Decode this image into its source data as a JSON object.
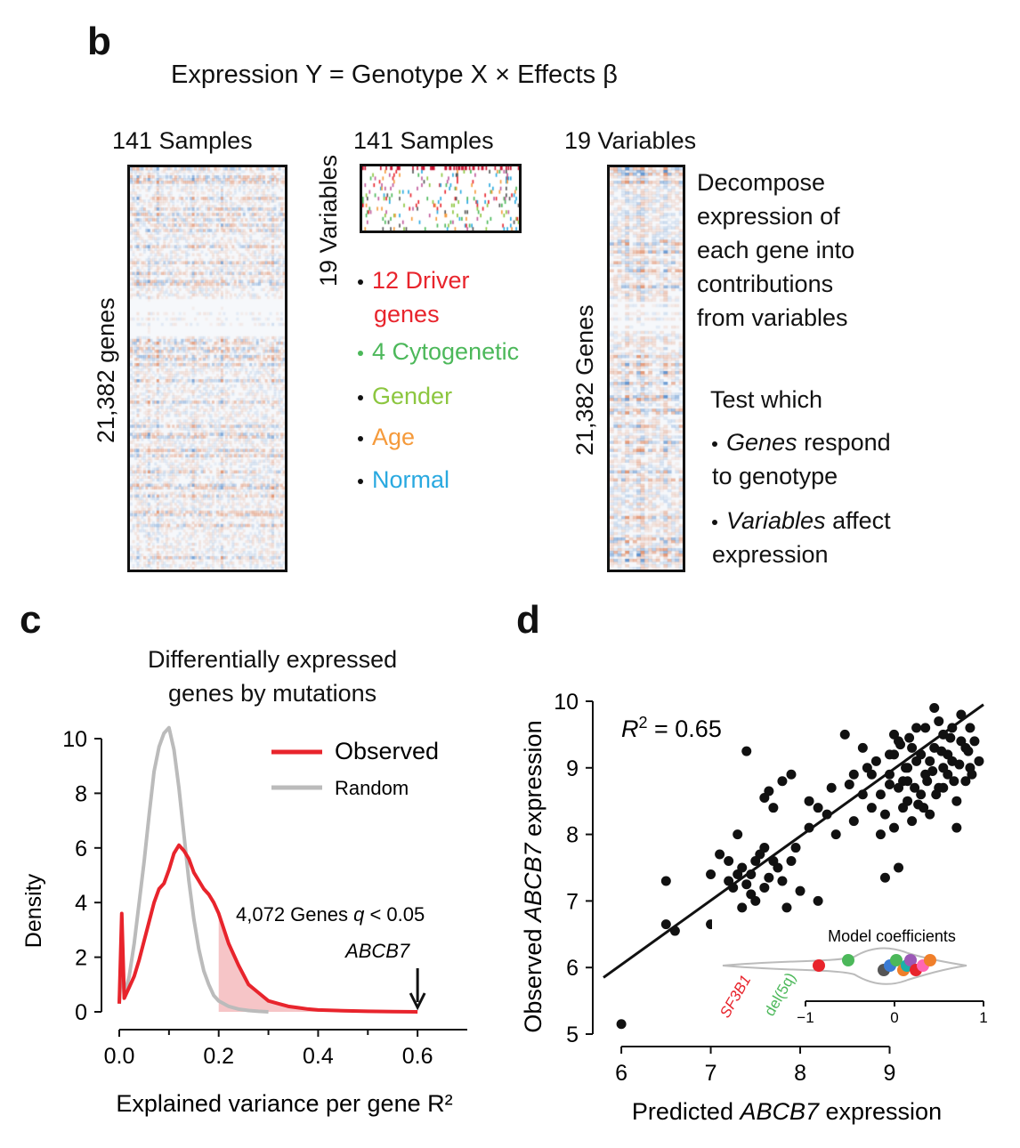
{
  "panel_b": {
    "label": "b",
    "equation": "Expression Y = Genotype X × Effects β",
    "expr_matrix": {
      "top_label": "141 Samples",
      "side_label": "21,382 genes"
    },
    "geno_matrix": {
      "top_label": "141 Samples",
      "side_label": "19 Variables"
    },
    "effects_matrix": {
      "top_label": "19 Variables",
      "side_label": "21,382 Genes"
    },
    "variables": [
      {
        "text": "12 Driver genes",
        "color": "#e8242c"
      },
      {
        "text": "4 Cytogenetic",
        "color": "#4cb85a"
      },
      {
        "text": "Gender",
        "color": "#8cc63f"
      },
      {
        "text": "Age",
        "color": "#f59a3b"
      },
      {
        "text": "Normal",
        "color": "#29a9e0"
      }
    ],
    "decompose_text": [
      "Decompose",
      "expression of",
      "each gene into",
      "contributions",
      "from variables"
    ],
    "test_title": "Test which",
    "test_items": [
      {
        "em": "Genes",
        "rest": " respond",
        "line2": "to genotype"
      },
      {
        "em": "Variables",
        "rest": " affect",
        "line2": "expression"
      }
    ]
  },
  "panel_c": {
    "label": "c",
    "title_lines": [
      "Differentially expressed",
      "genes by mutations"
    ],
    "annotation": "4,072 Genes",
    "annotation_q": "q",
    "annotation_tail": " < 0.05",
    "arrow_label": "ABCB7",
    "chart_data": {
      "type": "line",
      "xlabel": "Explained variance per gene R²",
      "ylabel": "Density",
      "xlim": [
        0,
        0.7
      ],
      "ylim": [
        0,
        10
      ],
      "xticks": [
        "0.0",
        "0.2",
        "0.4",
        "0.6"
      ],
      "yticks": [
        "0",
        "2",
        "4",
        "6",
        "8",
        "10"
      ],
      "legend": {
        "placement": "top-right",
        "entries": [
          "Observed",
          "Random"
        ]
      },
      "shaded_region_x_min": 0.2,
      "arrow_x": 0.6,
      "series": [
        {
          "name": "Observed",
          "color": "#e8242c",
          "x": [
            0,
            0.005,
            0.01,
            0.02,
            0.03,
            0.04,
            0.05,
            0.06,
            0.07,
            0.08,
            0.09,
            0.1,
            0.11,
            0.12,
            0.13,
            0.14,
            0.15,
            0.16,
            0.17,
            0.18,
            0.19,
            0.2,
            0.22,
            0.24,
            0.26,
            0.28,
            0.3,
            0.32,
            0.34,
            0.36,
            0.38,
            0.4,
            0.45,
            0.5,
            0.55,
            0.6
          ],
          "y": [
            0.3,
            3.6,
            0.5,
            0.9,
            1.3,
            1.9,
            2.6,
            3.3,
            4.0,
            4.5,
            4.7,
            5.2,
            5.8,
            6.1,
            5.9,
            5.6,
            5.1,
            4.8,
            4.5,
            4.3,
            4.0,
            3.6,
            2.5,
            1.7,
            1.0,
            0.7,
            0.4,
            0.3,
            0.2,
            0.15,
            0.1,
            0.07,
            0.04,
            0.02,
            0.01,
            0.0
          ]
        },
        {
          "name": "Random",
          "color": "#bbbbbb",
          "x": [
            0,
            0.005,
            0.01,
            0.02,
            0.03,
            0.04,
            0.05,
            0.06,
            0.07,
            0.08,
            0.09,
            0.1,
            0.11,
            0.12,
            0.13,
            0.14,
            0.15,
            0.16,
            0.17,
            0.18,
            0.19,
            0.2,
            0.22,
            0.24,
            0.26,
            0.28,
            0.3
          ],
          "y": [
            0.3,
            2.0,
            0.6,
            1.3,
            2.5,
            4.0,
            5.5,
            7.2,
            8.8,
            9.7,
            10.2,
            10.4,
            9.6,
            8.2,
            6.5,
            4.8,
            3.4,
            2.3,
            1.5,
            1.0,
            0.6,
            0.4,
            0.2,
            0.1,
            0.05,
            0.02,
            0.0
          ]
        }
      ]
    }
  },
  "panel_d": {
    "label": "d",
    "r2_label": "R",
    "r2_value": " = 0.65",
    "xlabel_pre": "Predicted ",
    "xlabel_em": "ABCB7",
    "xlabel_post": " expression",
    "ylabel_pre": "Observed ",
    "ylabel_em": "ABCB7",
    "ylabel_post": " expression",
    "inset_title": "Model coefficients",
    "inset_labels": {
      "sf3b1": "SF3B1",
      "del5q": "del(5q)"
    },
    "chart_data": {
      "type": "scatter",
      "xlim": [
        5.8,
        10.1
      ],
      "ylim": [
        5,
        10
      ],
      "xticks": [
        "6",
        "7",
        "8",
        "9"
      ],
      "yticks": [
        "5",
        "6",
        "7",
        "8",
        "9",
        "10"
      ],
      "fit_line": [
        [
          5.8,
          5.85
        ],
        [
          10.05,
          9.95
        ]
      ],
      "points": [
        [
          6.0,
          5.15
        ],
        [
          6.5,
          7.3
        ],
        [
          6.5,
          6.65
        ],
        [
          6.6,
          6.55
        ],
        [
          7.0,
          6.65
        ],
        [
          7.0,
          7.4
        ],
        [
          7.1,
          7.7
        ],
        [
          7.2,
          7.3
        ],
        [
          7.3,
          8.0
        ],
        [
          7.3,
          7.4
        ],
        [
          7.35,
          7.5
        ],
        [
          7.4,
          7.25
        ],
        [
          7.45,
          7.1
        ],
        [
          7.5,
          7.0
        ],
        [
          7.5,
          7.6
        ],
        [
          7.55,
          6.3
        ],
        [
          7.6,
          7.8
        ],
        [
          7.65,
          8.65
        ],
        [
          7.7,
          8.4
        ],
        [
          7.75,
          7.5
        ],
        [
          7.8,
          7.3
        ],
        [
          7.85,
          6.9
        ],
        [
          7.6,
          7.2
        ],
        [
          7.65,
          7.35
        ],
        [
          7.7,
          7.6
        ],
        [
          7.4,
          9.25
        ],
        [
          7.8,
          8.8
        ],
        [
          7.9,
          8.9
        ],
        [
          8.0,
          7.15
        ],
        [
          8.1,
          8.5
        ],
        [
          8.1,
          8.1
        ],
        [
          8.2,
          8.4
        ],
        [
          8.2,
          7.0
        ],
        [
          8.3,
          8.3
        ],
        [
          8.35,
          8.7
        ],
        [
          8.4,
          8.0
        ],
        [
          8.5,
          9.5
        ],
        [
          8.6,
          8.2
        ],
        [
          8.7,
          8.6
        ],
        [
          8.75,
          9.0
        ],
        [
          8.8,
          8.4
        ],
        [
          8.8,
          8.9
        ],
        [
          8.85,
          9.1
        ],
        [
          8.9,
          8.6
        ],
        [
          8.9,
          8.0
        ],
        [
          8.95,
          8.3
        ],
        [
          9.0,
          8.75
        ],
        [
          9.0,
          9.2
        ],
        [
          9.05,
          9.5
        ],
        [
          9.1,
          9.4
        ],
        [
          9.15,
          8.8
        ],
        [
          9.2,
          9.0
        ],
        [
          9.2,
          8.5
        ],
        [
          9.25,
          9.3
        ],
        [
          9.3,
          9.6
        ],
        [
          9.35,
          9.2
        ],
        [
          9.4,
          8.9
        ],
        [
          9.45,
          9.1
        ],
        [
          9.5,
          9.3
        ],
        [
          9.55,
          8.7
        ],
        [
          9.6,
          9.5
        ],
        [
          9.65,
          9.2
        ],
        [
          9.7,
          9.6
        ],
        [
          9.75,
          8.5
        ],
        [
          9.8,
          9.8
        ],
        [
          9.85,
          9.3
        ],
        [
          9.9,
          9.0
        ],
        [
          9.95,
          9.4
        ],
        [
          10.0,
          9.1
        ],
        [
          9.05,
          8.1
        ],
        [
          9.1,
          7.5
        ],
        [
          9.15,
          8.4
        ],
        [
          8.95,
          7.35
        ],
        [
          9.25,
          8.2
        ],
        [
          9.35,
          8.6
        ],
        [
          9.45,
          8.3
        ],
        [
          9.55,
          9.7
        ],
        [
          9.65,
          8.9
        ],
        [
          9.75,
          8.1
        ],
        [
          9.5,
          9.9
        ],
        [
          9.6,
          9.0
        ],
        [
          9.7,
          9.1
        ],
        [
          9.8,
          9.4
        ],
        [
          9.85,
          8.8
        ],
        [
          9.9,
          9.6
        ],
        [
          9.6,
          8.7
        ],
        [
          9.4,
          9.6
        ],
        [
          9.3,
          9.1
        ],
        [
          9.2,
          8.8
        ],
        [
          9.1,
          8.7
        ],
        [
          9.0,
          8.9
        ],
        [
          9.05,
          9.2
        ],
        [
          9.12,
          9.35
        ],
        [
          9.18,
          9.0
        ],
        [
          9.28,
          8.7
        ],
        [
          9.38,
          8.4
        ],
        [
          9.48,
          8.95
        ],
        [
          9.58,
          9.25
        ],
        [
          9.68,
          9.45
        ],
        [
          9.78,
          9.05
        ],
        [
          9.88,
          9.25
        ],
        [
          9.92,
          8.9
        ],
        [
          9.72,
          8.8
        ],
        [
          9.52,
          8.6
        ],
        [
          9.42,
          8.8
        ],
        [
          9.32,
          8.45
        ],
        [
          9.22,
          9.45
        ],
        [
          8.6,
          8.9
        ],
        [
          8.7,
          9.3
        ],
        [
          8.55,
          8.75
        ],
        [
          7.9,
          7.6
        ],
        [
          7.95,
          7.8
        ],
        [
          7.55,
          7.7
        ],
        [
          7.45,
          7.4
        ],
        [
          7.25,
          7.2
        ],
        [
          7.35,
          6.9
        ],
        [
          7.6,
          8.55
        ],
        [
          7.2,
          7.6
        ]
      ],
      "inset": {
        "xlim": [
          -1,
          1
        ],
        "xticks": [
          "-1",
          "0",
          "1"
        ],
        "dots": [
          {
            "x": -0.85,
            "color": "#e8242c"
          },
          {
            "x": -0.52,
            "color": "#4cb85a"
          },
          {
            "x": -0.12,
            "color": "#555555"
          },
          {
            "x": -0.05,
            "color": "#3a7bd5"
          },
          {
            "x": 0.02,
            "color": "#4cb85a"
          },
          {
            "x": 0.1,
            "color": "#f07f2a"
          },
          {
            "x": 0.14,
            "color": "#1ab0a8"
          },
          {
            "x": 0.18,
            "color": "#9b59b6"
          },
          {
            "x": 0.24,
            "color": "#e8242c"
          },
          {
            "x": 0.32,
            "color": "#ff66b3"
          },
          {
            "x": 0.4,
            "color": "#f07f2a"
          }
        ]
      }
    }
  }
}
